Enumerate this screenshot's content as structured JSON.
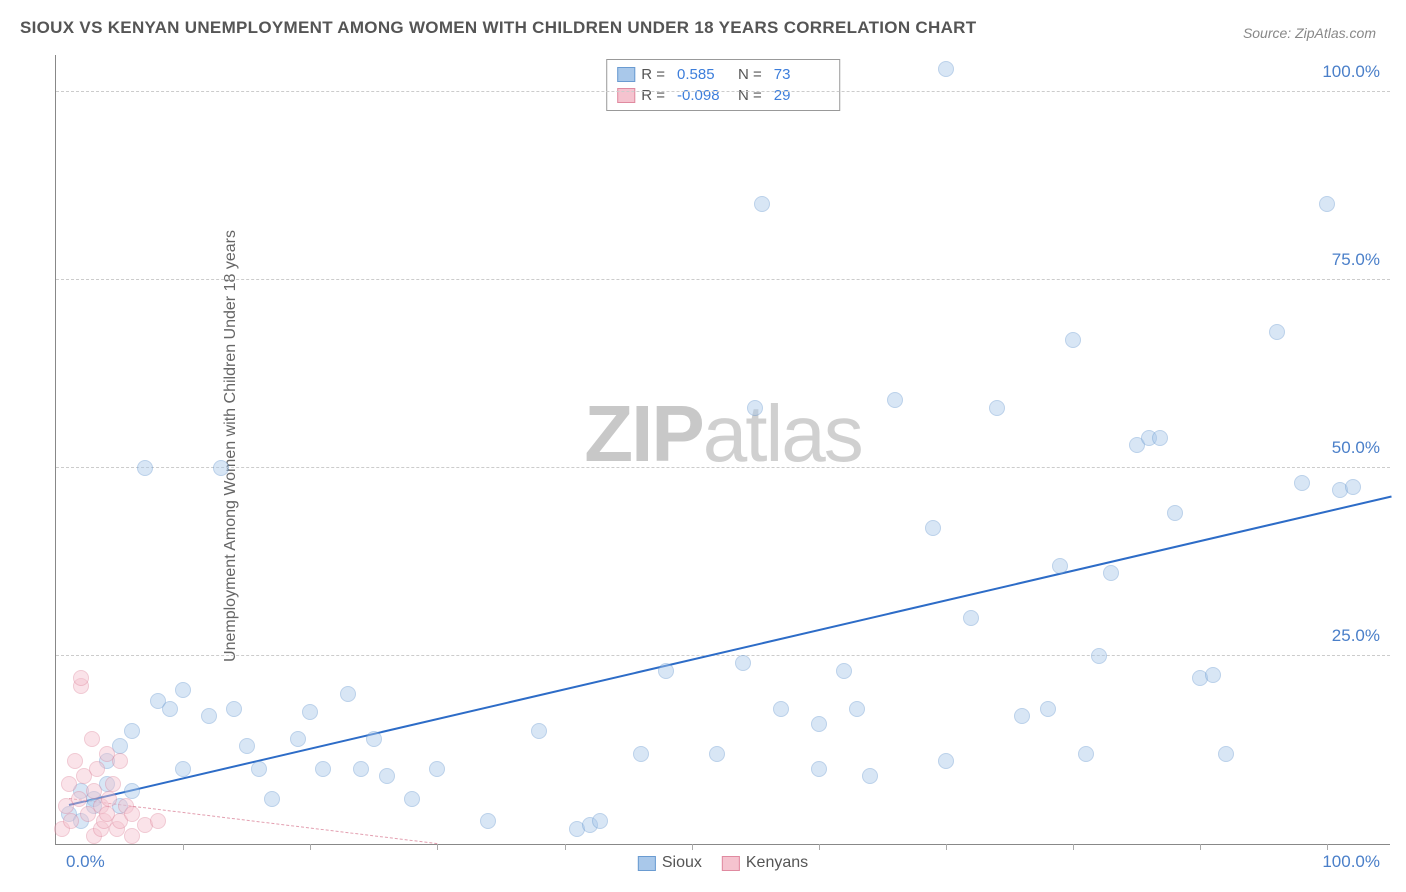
{
  "title": "SIOUX VS KENYAN UNEMPLOYMENT AMONG WOMEN WITH CHILDREN UNDER 18 YEARS CORRELATION CHART",
  "source": "Source: ZipAtlas.com",
  "ylabel": "Unemployment Among Women with Children Under 18 years",
  "watermark_bold": "ZIP",
  "watermark_rest": "atlas",
  "chart": {
    "type": "scatter",
    "xlim": [
      0,
      105
    ],
    "ylim": [
      0,
      105
    ],
    "x_tick_minor_step": 10,
    "y_gridlines": [
      25,
      50,
      75,
      100
    ],
    "y_tick_labels": [
      "25.0%",
      "50.0%",
      "75.0%",
      "100.0%"
    ],
    "x_min_label": "0.0%",
    "x_max_label": "100.0%",
    "background_color": "#ffffff",
    "grid_color": "#cccccc",
    "axis_color": "#888888",
    "tick_label_color": "#4a7fc9",
    "marker_radius": 8,
    "marker_opacity": 0.45,
    "marker_border_width": 1.2
  },
  "series": [
    {
      "name": "Sioux",
      "color_fill": "#a9c8ea",
      "color_stroke": "#6a9bd1",
      "R": "0.585",
      "N": "73",
      "trend": {
        "x1": 1,
        "y1": 5,
        "x2": 105,
        "y2": 46,
        "color": "#2d6cc7",
        "width": 2.5,
        "dash": "solid"
      },
      "points": [
        [
          1,
          4
        ],
        [
          2,
          3
        ],
        [
          2,
          7
        ],
        [
          3,
          6
        ],
        [
          3,
          5
        ],
        [
          4,
          11
        ],
        [
          4,
          8
        ],
        [
          5,
          13
        ],
        [
          5,
          5
        ],
        [
          6,
          15
        ],
        [
          6,
          7
        ],
        [
          7,
          50
        ],
        [
          8,
          19
        ],
        [
          9,
          18
        ],
        [
          10,
          20.5
        ],
        [
          10,
          10
        ],
        [
          12,
          17
        ],
        [
          13,
          50
        ],
        [
          14,
          18
        ],
        [
          15,
          13
        ],
        [
          16,
          10
        ],
        [
          17,
          6
        ],
        [
          19,
          14
        ],
        [
          20,
          17.5
        ],
        [
          21,
          10
        ],
        [
          23,
          20
        ],
        [
          24,
          10
        ],
        [
          25,
          14
        ],
        [
          26,
          9
        ],
        [
          28,
          6
        ],
        [
          30,
          10
        ],
        [
          34,
          3
        ],
        [
          38,
          15
        ],
        [
          41,
          2
        ],
        [
          42,
          2.5
        ],
        [
          42.8,
          3
        ],
        [
          46,
          12
        ],
        [
          48,
          23
        ],
        [
          52,
          12
        ],
        [
          54,
          24
        ],
        [
          55,
          58
        ],
        [
          55.5,
          85
        ],
        [
          57,
          18
        ],
        [
          60,
          16
        ],
        [
          60,
          10
        ],
        [
          62,
          23
        ],
        [
          63,
          18
        ],
        [
          64,
          9
        ],
        [
          66,
          59
        ],
        [
          69,
          42
        ],
        [
          70,
          103
        ],
        [
          70,
          11
        ],
        [
          72,
          30
        ],
        [
          74,
          58
        ],
        [
          76,
          17
        ],
        [
          78,
          18
        ],
        [
          79,
          37
        ],
        [
          80,
          67
        ],
        [
          81,
          12
        ],
        [
          82,
          25
        ],
        [
          83,
          36
        ],
        [
          85,
          53
        ],
        [
          86,
          54
        ],
        [
          86.8,
          54
        ],
        [
          88,
          44
        ],
        [
          90,
          22
        ],
        [
          91,
          22.5
        ],
        [
          92,
          12
        ],
        [
          96,
          68
        ],
        [
          98,
          48
        ],
        [
          100,
          85
        ],
        [
          101,
          47
        ],
        [
          102,
          47.5
        ]
      ]
    },
    {
      "name": "Kenyans",
      "color_fill": "#f5c3cf",
      "color_stroke": "#e08aa0",
      "R": "-0.098",
      "N": "29",
      "trend": {
        "x1": 1,
        "y1": 6,
        "x2": 30,
        "y2": 0,
        "color": "#e39fb0",
        "width": 1.5,
        "dash": "dashed"
      },
      "points": [
        [
          0.5,
          2
        ],
        [
          0.8,
          5
        ],
        [
          1,
          8
        ],
        [
          1.2,
          3
        ],
        [
          1.5,
          11
        ],
        [
          1.8,
          6
        ],
        [
          2,
          21
        ],
        [
          2,
          22
        ],
        [
          2.2,
          9
        ],
        [
          2.5,
          4
        ],
        [
          2.8,
          14
        ],
        [
          3,
          7
        ],
        [
          3,
          1
        ],
        [
          3.2,
          10
        ],
        [
          3.5,
          5
        ],
        [
          3.5,
          2
        ],
        [
          3.8,
          3
        ],
        [
          4,
          12
        ],
        [
          4,
          4
        ],
        [
          4.2,
          6
        ],
        [
          4.5,
          8
        ],
        [
          4.8,
          2
        ],
        [
          5,
          11
        ],
        [
          5,
          3
        ],
        [
          5.5,
          5
        ],
        [
          6,
          1
        ],
        [
          6,
          4
        ],
        [
          7,
          2.5
        ],
        [
          8,
          3
        ]
      ]
    }
  ],
  "legend_top": {
    "R_label": "R =",
    "N_label": "N ="
  },
  "legend_bottom": {
    "items": [
      "Sioux",
      "Kenyans"
    ]
  }
}
